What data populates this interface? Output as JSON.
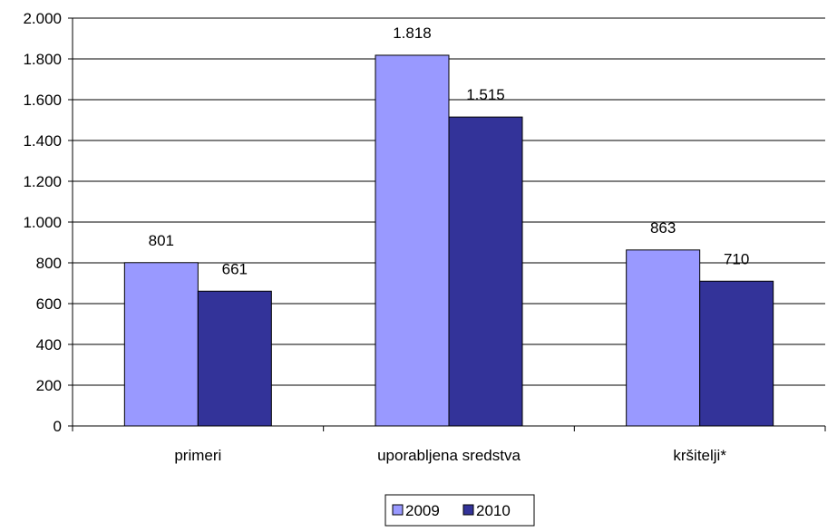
{
  "chart_data": {
    "type": "bar",
    "categories": [
      "primeri",
      "uporabljena sredstva",
      "kršitelji*"
    ],
    "series": [
      {
        "name": "2009",
        "values": [
          801,
          1818,
          863
        ],
        "labels": [
          "801",
          "1.818",
          "863"
        ],
        "color": "#9999FF"
      },
      {
        "name": "2010",
        "values": [
          661,
          1515,
          710
        ],
        "labels": [
          "661",
          "1.515",
          "710"
        ],
        "color": "#333399"
      }
    ],
    "title": "",
    "xlabel": "",
    "ylabel": "",
    "ylim": [
      0,
      2000
    ],
    "yticks": [
      0,
      200,
      400,
      600,
      800,
      1000,
      1200,
      1400,
      1600,
      1800,
      2000
    ],
    "ytick_labels": [
      "0",
      "200",
      "400",
      "600",
      "800",
      "1.000",
      "1.200",
      "1.400",
      "1.600",
      "1.800",
      "2.000"
    ],
    "grid": "horizontal",
    "legend": "bottom-center"
  }
}
